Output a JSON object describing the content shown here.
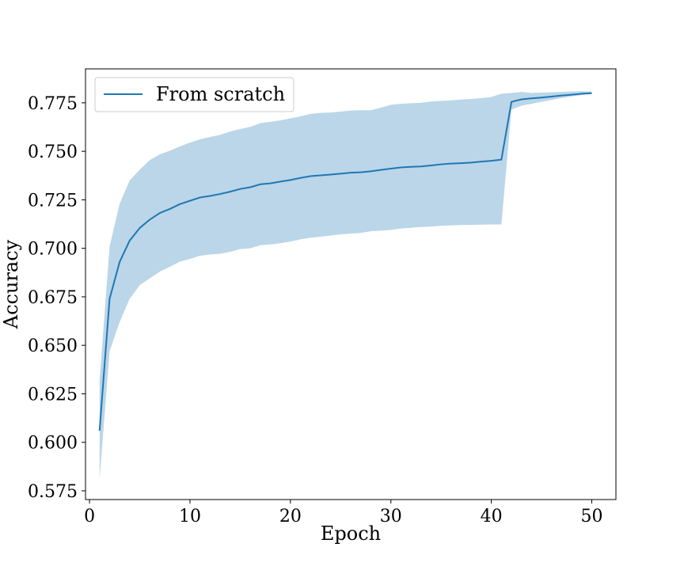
{
  "chart_data": {
    "type": "line",
    "title": "",
    "xlabel": "Epoch",
    "ylabel": "Accuracy",
    "xlim": [
      -0.4,
      52.4
    ],
    "ylim": [
      0.5705,
      0.7925
    ],
    "xticks": [
      0,
      10,
      20,
      30,
      40,
      50
    ],
    "xtick_labels": [
      "0",
      "10",
      "20",
      "30",
      "40",
      "50"
    ],
    "yticks": [
      0.575,
      0.6,
      0.625,
      0.65,
      0.675,
      0.7,
      0.725,
      0.75,
      0.775
    ],
    "ytick_labels": [
      "0.575",
      "0.600",
      "0.625",
      "0.650",
      "0.675",
      "0.700",
      "0.725",
      "0.750",
      "0.775"
    ],
    "grid": false,
    "legend_position": "upper-left",
    "line_color": "#1f77b4",
    "band_color": "#1f77b4",
    "x": [
      1,
      2,
      3,
      4,
      5,
      6,
      7,
      8,
      9,
      10,
      11,
      12,
      13,
      14,
      15,
      16,
      17,
      18,
      19,
      20,
      21,
      22,
      23,
      24,
      25,
      26,
      27,
      28,
      29,
      30,
      31,
      32,
      33,
      34,
      35,
      36,
      37,
      38,
      39,
      40,
      41,
      42,
      43,
      44,
      45,
      46,
      47,
      48,
      49,
      50
    ],
    "series": [
      {
        "name": "From scratch",
        "values": [
          0.606,
          0.674,
          0.693,
          0.704,
          0.7105,
          0.7148,
          0.7182,
          0.7203,
          0.7228,
          0.7245,
          0.7262,
          0.727,
          0.728,
          0.7292,
          0.7306,
          0.7315,
          0.733,
          0.7335,
          0.7344,
          0.7352,
          0.7363,
          0.7372,
          0.7376,
          0.738,
          0.7385,
          0.739,
          0.7392,
          0.7397,
          0.7404,
          0.7411,
          0.7417,
          0.742,
          0.7422,
          0.7427,
          0.7433,
          0.7437,
          0.7439,
          0.7442,
          0.7447,
          0.7451,
          0.7457,
          0.7755,
          0.7768,
          0.7773,
          0.7777,
          0.7782,
          0.7788,
          0.7792,
          0.7797,
          0.78
        ],
        "lower": [
          0.581,
          0.647,
          0.662,
          0.674,
          0.681,
          0.6845,
          0.688,
          0.6905,
          0.6932,
          0.6945,
          0.6962,
          0.6968,
          0.6972,
          0.6982,
          0.6996,
          0.7,
          0.7016,
          0.702,
          0.7026,
          0.7035,
          0.7046,
          0.7055,
          0.706,
          0.7066,
          0.7072,
          0.7076,
          0.7079,
          0.7088,
          0.7091,
          0.7095,
          0.7102,
          0.7106,
          0.711,
          0.7112,
          0.7116,
          0.7118,
          0.712,
          0.7121,
          0.7122,
          0.7123,
          0.7123,
          0.7715,
          0.7735,
          0.7745,
          0.7755,
          0.7765,
          0.7775,
          0.7783,
          0.779,
          0.7795
        ],
        "upper": [
          0.632,
          0.701,
          0.723,
          0.735,
          0.7405,
          0.7455,
          0.7485,
          0.7503,
          0.7525,
          0.7545,
          0.7562,
          0.7574,
          0.7585,
          0.7602,
          0.7615,
          0.7626,
          0.7645,
          0.7652,
          0.766,
          0.767,
          0.768,
          0.7693,
          0.7698,
          0.77,
          0.7705,
          0.771,
          0.7712,
          0.7712,
          0.7725,
          0.774,
          0.7745,
          0.7748,
          0.775,
          0.7757,
          0.776,
          0.7763,
          0.7767,
          0.777,
          0.7774,
          0.778,
          0.7797,
          0.7801,
          0.7806,
          0.7801,
          0.7803,
          0.7804,
          0.7806,
          0.7808,
          0.781,
          0.7808
        ]
      }
    ]
  }
}
